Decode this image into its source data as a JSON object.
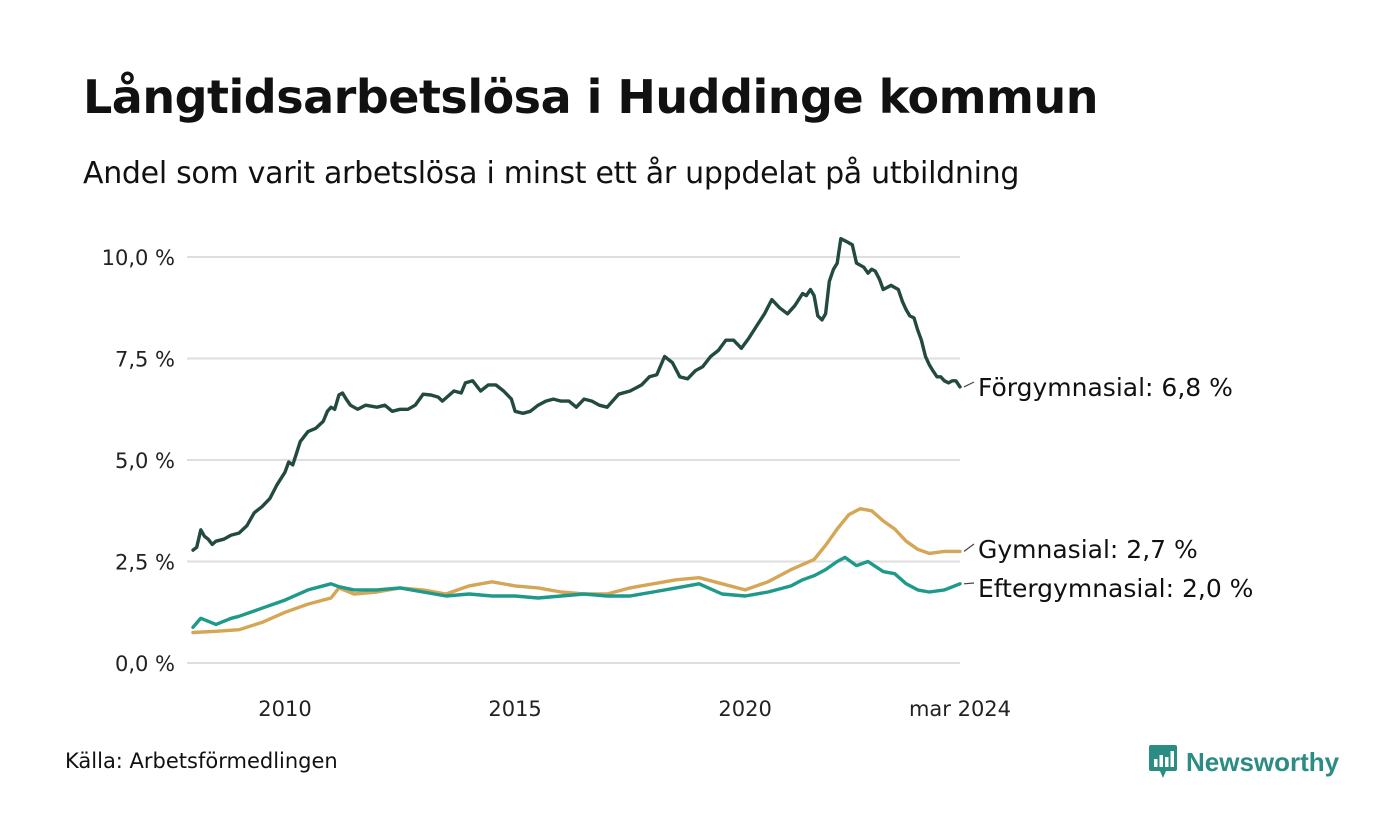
{
  "header": {
    "title": "Långtidsarbetslösa i Huddinge kommun",
    "subtitle": "Andel som varit arbetslösa i minst ett år uppdelat på utbildning"
  },
  "footer": {
    "source": "Källa: Arbetsförmedlingen",
    "brand": "Newsworthy"
  },
  "colors": {
    "forgymnasial": "#234a40",
    "gymnasial": "#d4a656",
    "eftergymnasial": "#1f9a8a",
    "grid": "#dedede",
    "brand": "#2b8c84"
  },
  "icons": {
    "brand_logo": "bar-chart-badge-icon"
  },
  "chart_data": {
    "type": "line",
    "title": "Långtidsarbetslösa i Huddinge kommun",
    "subtitle": "Andel som varit arbetslösa i minst ett år uppdelat på utbildning",
    "xlabel": "",
    "ylabel": "",
    "xlim": [
      2008.0,
      2024.17
    ],
    "ylim": [
      0,
      10.5
    ],
    "grid": true,
    "y_ticks": [
      0,
      2.5,
      5,
      7.5,
      10
    ],
    "y_tick_labels": [
      "0,0 %",
      "2,5 %",
      "5,0 %",
      "7,5 %",
      "10,0 %"
    ],
    "x_ticks": [
      2010,
      2015,
      2020,
      2024.17
    ],
    "x_tick_labels": [
      "2010",
      "2015",
      "2020",
      "mar 2024"
    ],
    "series": [
      {
        "name": "Förgymnasial",
        "label": "Förgymnasial: 6,8 %",
        "color": "#234a40",
        "points": [
          [
            2008.0,
            2.78
          ],
          [
            2008.08,
            2.85
          ],
          [
            2008.17,
            3.28
          ],
          [
            2008.25,
            3.12
          ],
          [
            2008.33,
            3.05
          ],
          [
            2008.42,
            2.92
          ],
          [
            2008.5,
            3.0
          ],
          [
            2008.67,
            3.05
          ],
          [
            2008.83,
            3.15
          ],
          [
            2009.0,
            3.2
          ],
          [
            2009.17,
            3.38
          ],
          [
            2009.33,
            3.7
          ],
          [
            2009.5,
            3.85
          ],
          [
            2009.67,
            4.05
          ],
          [
            2009.83,
            4.4
          ],
          [
            2010.0,
            4.7
          ],
          [
            2010.08,
            4.95
          ],
          [
            2010.17,
            4.88
          ],
          [
            2010.33,
            5.45
          ],
          [
            2010.5,
            5.7
          ],
          [
            2010.67,
            5.78
          ],
          [
            2010.83,
            5.95
          ],
          [
            2010.92,
            6.2
          ],
          [
            2011.0,
            6.3
          ],
          [
            2011.08,
            6.25
          ],
          [
            2011.17,
            6.6
          ],
          [
            2011.25,
            6.65
          ],
          [
            2011.33,
            6.5
          ],
          [
            2011.42,
            6.35
          ],
          [
            2011.58,
            6.25
          ],
          [
            2011.75,
            6.35
          ],
          [
            2012.0,
            6.3
          ],
          [
            2012.17,
            6.35
          ],
          [
            2012.33,
            6.2
          ],
          [
            2012.5,
            6.25
          ],
          [
            2012.67,
            6.25
          ],
          [
            2012.83,
            6.35
          ],
          [
            2013.0,
            6.62
          ],
          [
            2013.17,
            6.6
          ],
          [
            2013.33,
            6.55
          ],
          [
            2013.42,
            6.45
          ],
          [
            2013.67,
            6.7
          ],
          [
            2013.83,
            6.65
          ],
          [
            2013.92,
            6.9
          ],
          [
            2014.08,
            6.95
          ],
          [
            2014.25,
            6.7
          ],
          [
            2014.42,
            6.85
          ],
          [
            2014.58,
            6.85
          ],
          [
            2014.75,
            6.7
          ],
          [
            2014.92,
            6.5
          ],
          [
            2015.0,
            6.2
          ],
          [
            2015.17,
            6.15
          ],
          [
            2015.33,
            6.2
          ],
          [
            2015.5,
            6.35
          ],
          [
            2015.67,
            6.45
          ],
          [
            2015.83,
            6.5
          ],
          [
            2016.0,
            6.45
          ],
          [
            2016.17,
            6.45
          ],
          [
            2016.33,
            6.3
          ],
          [
            2016.5,
            6.5
          ],
          [
            2016.67,
            6.45
          ],
          [
            2016.83,
            6.35
          ],
          [
            2017.0,
            6.3
          ],
          [
            2017.25,
            6.62
          ],
          [
            2017.5,
            6.7
          ],
          [
            2017.75,
            6.85
          ],
          [
            2017.92,
            7.05
          ],
          [
            2018.08,
            7.1
          ],
          [
            2018.25,
            7.55
          ],
          [
            2018.42,
            7.4
          ],
          [
            2018.58,
            7.05
          ],
          [
            2018.75,
            7.0
          ],
          [
            2018.92,
            7.2
          ],
          [
            2019.08,
            7.3
          ],
          [
            2019.25,
            7.55
          ],
          [
            2019.42,
            7.7
          ],
          [
            2019.58,
            7.95
          ],
          [
            2019.75,
            7.95
          ],
          [
            2019.92,
            7.75
          ],
          [
            2020.08,
            8.0
          ],
          [
            2020.25,
            8.3
          ],
          [
            2020.42,
            8.6
          ],
          [
            2020.58,
            8.95
          ],
          [
            2020.75,
            8.75
          ],
          [
            2020.92,
            8.6
          ],
          [
            2021.08,
            8.8
          ],
          [
            2021.25,
            9.1
          ],
          [
            2021.33,
            9.05
          ],
          [
            2021.42,
            9.2
          ],
          [
            2021.5,
            9.05
          ],
          [
            2021.58,
            8.55
          ],
          [
            2021.67,
            8.45
          ],
          [
            2021.75,
            8.6
          ],
          [
            2021.83,
            9.4
          ],
          [
            2021.92,
            9.7
          ],
          [
            2022.0,
            9.85
          ],
          [
            2022.08,
            10.45
          ],
          [
            2022.17,
            10.4
          ],
          [
            2022.33,
            10.3
          ],
          [
            2022.42,
            9.85
          ],
          [
            2022.58,
            9.75
          ],
          [
            2022.67,
            9.6
          ],
          [
            2022.75,
            9.7
          ],
          [
            2022.83,
            9.65
          ],
          [
            2022.92,
            9.45
          ],
          [
            2023.0,
            9.2
          ],
          [
            2023.17,
            9.3
          ],
          [
            2023.33,
            9.2
          ],
          [
            2023.42,
            8.9
          ],
          [
            2023.5,
            8.7
          ],
          [
            2023.58,
            8.55
          ],
          [
            2023.67,
            8.5
          ],
          [
            2023.75,
            8.2
          ],
          [
            2023.83,
            7.95
          ],
          [
            2023.92,
            7.55
          ],
          [
            2024.0,
            7.35
          ],
          [
            2024.08,
            7.2
          ],
          [
            2024.17,
            7.05
          ],
          [
            2024.25,
            7.05
          ],
          [
            2024.33,
            6.95
          ],
          [
            2024.42,
            6.9
          ],
          [
            2024.5,
            6.95
          ],
          [
            2024.58,
            6.95
          ],
          [
            2024.67,
            6.8
          ]
        ]
      },
      {
        "name": "Gymnasial",
        "label": "Gymnasial: 2,7 %",
        "color": "#d4a656",
        "points": [
          [
            2008.0,
            0.75
          ],
          [
            2008.5,
            0.78
          ],
          [
            2009.0,
            0.82
          ],
          [
            2009.5,
            1.0
          ],
          [
            2010.0,
            1.25
          ],
          [
            2010.5,
            1.45
          ],
          [
            2011.0,
            1.6
          ],
          [
            2011.17,
            1.85
          ],
          [
            2011.5,
            1.7
          ],
          [
            2012.0,
            1.75
          ],
          [
            2012.5,
            1.85
          ],
          [
            2013.0,
            1.8
          ],
          [
            2013.5,
            1.7
          ],
          [
            2014.0,
            1.9
          ],
          [
            2014.5,
            2.0
          ],
          [
            2015.0,
            1.9
          ],
          [
            2015.5,
            1.85
          ],
          [
            2016.0,
            1.75
          ],
          [
            2016.5,
            1.7
          ],
          [
            2017.0,
            1.7
          ],
          [
            2017.5,
            1.85
          ],
          [
            2018.0,
            1.95
          ],
          [
            2018.5,
            2.05
          ],
          [
            2019.0,
            2.1
          ],
          [
            2019.5,
            1.95
          ],
          [
            2020.0,
            1.8
          ],
          [
            2020.5,
            2.0
          ],
          [
            2021.0,
            2.3
          ],
          [
            2021.5,
            2.55
          ],
          [
            2021.75,
            2.9
          ],
          [
            2022.0,
            3.3
          ],
          [
            2022.25,
            3.65
          ],
          [
            2022.5,
            3.8
          ],
          [
            2022.75,
            3.75
          ],
          [
            2023.0,
            3.5
          ],
          [
            2023.25,
            3.3
          ],
          [
            2023.5,
            3.0
          ],
          [
            2023.75,
            2.8
          ],
          [
            2024.0,
            2.7
          ],
          [
            2024.33,
            2.75
          ],
          [
            2024.67,
            2.75
          ]
        ]
      },
      {
        "name": "Eftergymnasial",
        "label": "Eftergymnasial: 2,0 %",
        "color": "#1f9a8a",
        "points": [
          [
            2008.0,
            0.88
          ],
          [
            2008.17,
            1.1
          ],
          [
            2008.5,
            0.95
          ],
          [
            2008.83,
            1.1
          ],
          [
            2009.0,
            1.15
          ],
          [
            2009.5,
            1.35
          ],
          [
            2010.0,
            1.55
          ],
          [
            2010.5,
            1.8
          ],
          [
            2011.0,
            1.95
          ],
          [
            2011.17,
            1.88
          ],
          [
            2011.5,
            1.8
          ],
          [
            2012.0,
            1.8
          ],
          [
            2012.5,
            1.85
          ],
          [
            2013.0,
            1.75
          ],
          [
            2013.5,
            1.65
          ],
          [
            2014.0,
            1.7
          ],
          [
            2014.5,
            1.65
          ],
          [
            2015.0,
            1.65
          ],
          [
            2015.5,
            1.6
          ],
          [
            2016.0,
            1.65
          ],
          [
            2016.5,
            1.7
          ],
          [
            2017.0,
            1.65
          ],
          [
            2017.5,
            1.65
          ],
          [
            2018.0,
            1.75
          ],
          [
            2018.5,
            1.85
          ],
          [
            2019.0,
            1.95
          ],
          [
            2019.5,
            1.7
          ],
          [
            2020.0,
            1.65
          ],
          [
            2020.5,
            1.75
          ],
          [
            2021.0,
            1.9
          ],
          [
            2021.25,
            2.05
          ],
          [
            2021.5,
            2.15
          ],
          [
            2021.75,
            2.3
          ],
          [
            2022.0,
            2.5
          ],
          [
            2022.17,
            2.6
          ],
          [
            2022.42,
            2.4
          ],
          [
            2022.67,
            2.5
          ],
          [
            2023.0,
            2.25
          ],
          [
            2023.25,
            2.2
          ],
          [
            2023.5,
            1.95
          ],
          [
            2023.75,
            1.8
          ],
          [
            2024.0,
            1.75
          ],
          [
            2024.33,
            1.8
          ],
          [
            2024.67,
            1.95
          ]
        ]
      }
    ]
  }
}
